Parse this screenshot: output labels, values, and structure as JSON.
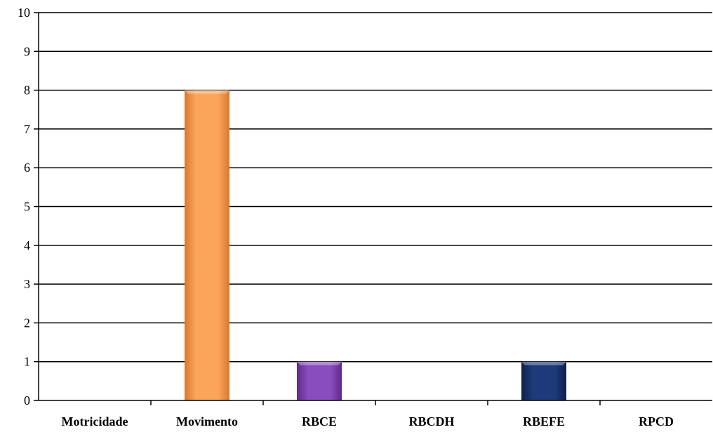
{
  "chart_data": {
    "type": "bar",
    "title": "",
    "xlabel": "",
    "ylabel": "",
    "categories": [
      "Motricidade",
      "Movimento",
      "RBCE",
      "RBCDH",
      "RBEFE",
      "RPCD"
    ],
    "values": [
      0,
      8,
      1,
      0,
      1,
      0
    ],
    "bar_colors": [
      "#f79646",
      "#f79646",
      "#7f3fae",
      "#1f497d",
      "#17306b",
      "#1f497d"
    ],
    "ylim": [
      0,
      10
    ],
    "yticks": [
      0,
      1,
      2,
      3,
      4,
      5,
      6,
      7,
      8,
      9,
      10
    ],
    "grid": true,
    "legend": "none"
  }
}
